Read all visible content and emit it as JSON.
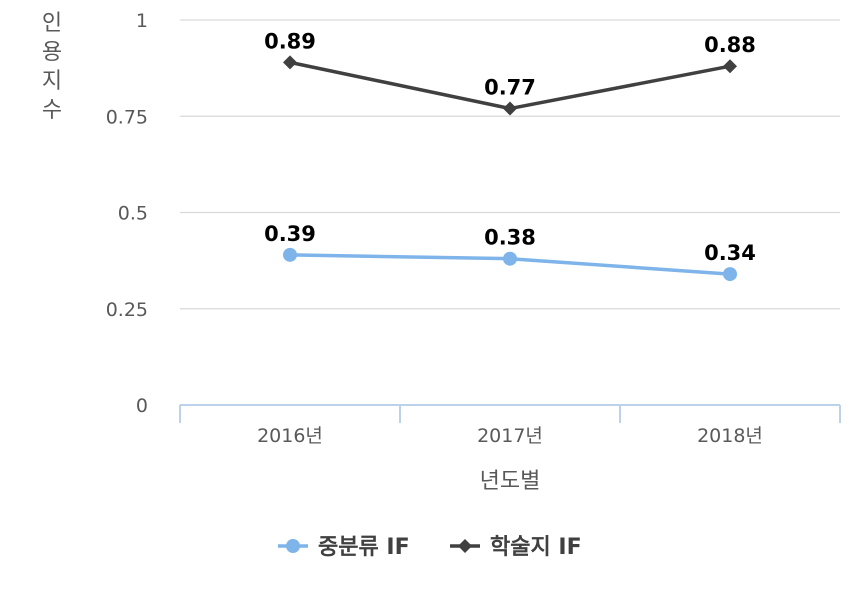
{
  "chart_data": {
    "type": "line",
    "categories": [
      "2016년",
      "2017년",
      "2018년"
    ],
    "series": [
      {
        "name": "중분류 IF",
        "values": [
          0.39,
          0.38,
          0.34
        ],
        "color": "#7EB4EA",
        "marker": "circle"
      },
      {
        "name": "학술지 IF",
        "values": [
          0.89,
          0.77,
          0.88
        ],
        "color": "#404040",
        "marker": "diamond"
      }
    ],
    "data_labels": [
      [
        "0.39",
        "0.38",
        "0.34"
      ],
      [
        "0.89",
        "0.77",
        "0.88"
      ]
    ],
    "title": "",
    "xlabel": "년도별",
    "ylabel_chars": [
      "인",
      "용",
      "지",
      "수"
    ],
    "ylim": [
      0,
      1
    ],
    "yticks": [
      0,
      0.25,
      0.5,
      0.75,
      1
    ],
    "ytick_labels": [
      "0",
      "0.25",
      "0.5",
      "0.75",
      "1"
    ],
    "grid": true,
    "legend_position": "bottom"
  }
}
